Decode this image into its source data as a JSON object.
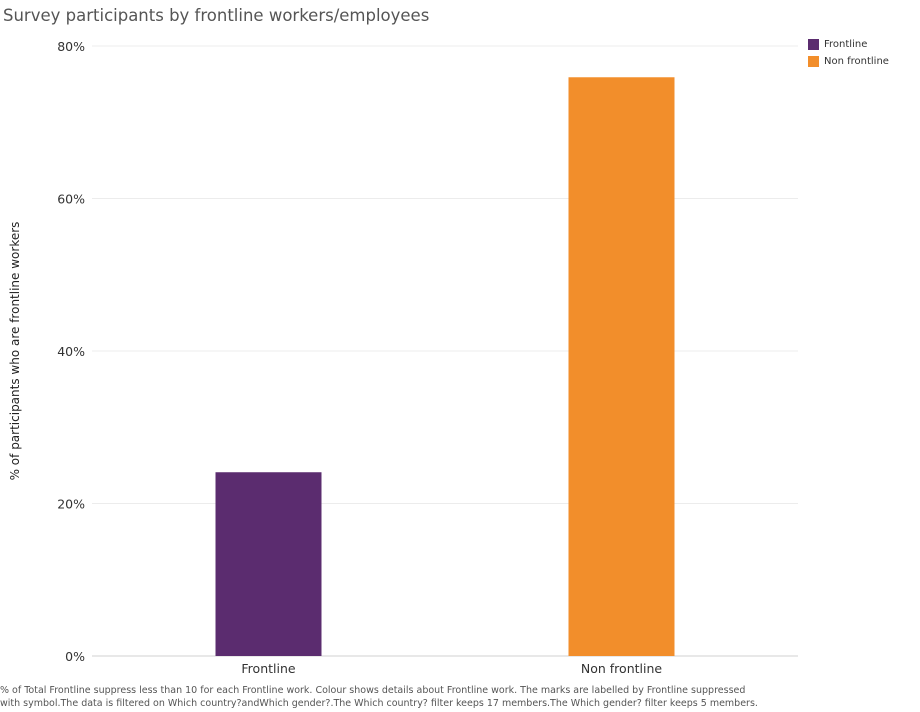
{
  "chart_data": {
    "type": "bar",
    "title": "Survey participants by frontline workers/employees",
    "categories": [
      "Frontline",
      "Non frontline"
    ],
    "values": [
      24.1,
      75.9
    ],
    "colors": [
      "#5b2c6f",
      "#f28e2b"
    ],
    "ylabel": "% of participants who are frontline workers",
    "xlabel": "",
    "ylim": [
      0,
      80
    ],
    "yticks": [
      0,
      20,
      40,
      60,
      80
    ],
    "ytick_labels": [
      "0%",
      "20%",
      "40%",
      "60%",
      "80%"
    ],
    "grid": true,
    "legend": {
      "placement": "top-right",
      "entries": [
        {
          "label": "Frontline",
          "color": "#5b2c6f"
        },
        {
          "label": "Non frontline",
          "color": "#f28e2b"
        }
      ]
    }
  },
  "footnote": "% of Total Frontline suppress less than 10 for each Frontline work. Colour shows details about Frontline work. The marks are labelled by Frontline suppressed with symbol.The data is filtered on Which country?andWhich gender?.The Which country? filter keeps 17 members.The Which gender? filter keeps 5 members."
}
